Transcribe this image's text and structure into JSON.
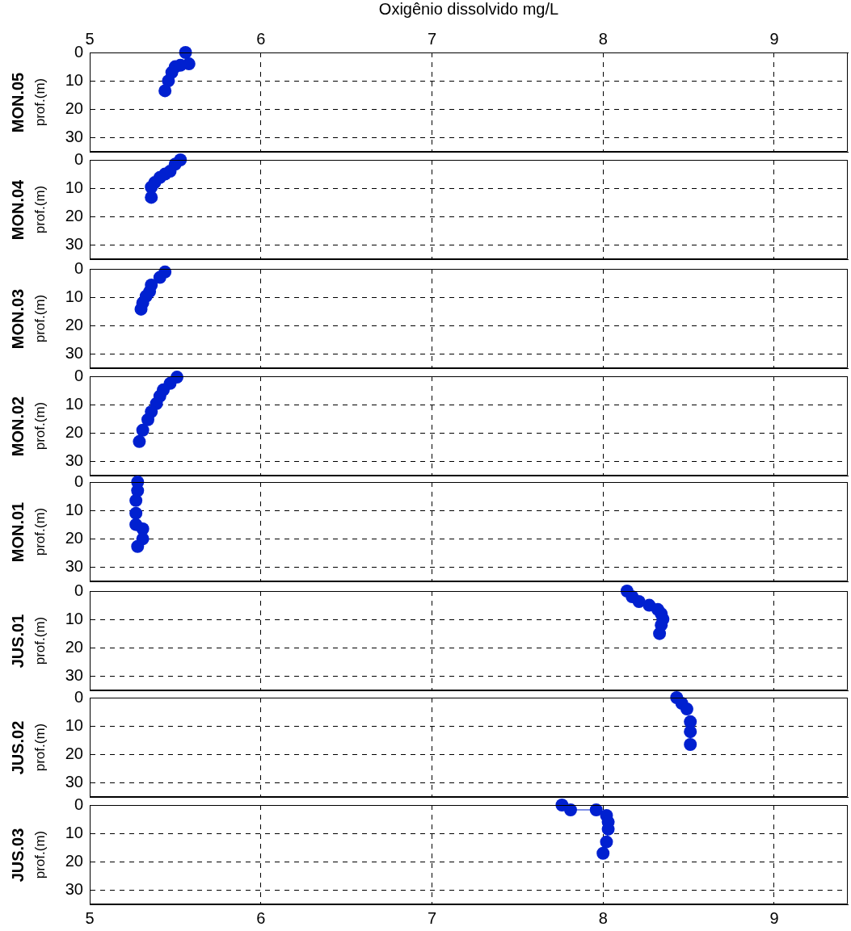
{
  "chart_data": [
    {
      "type": "scatter",
      "title": "MON.05",
      "ylabel": "prof.(m)",
      "x2label": "Oxigênio dissolvido mg/L",
      "x2lim": [
        5,
        9.43
      ],
      "x2ticks": [
        5,
        6,
        7,
        8,
        9
      ],
      "x": [
        5.56,
        5.58,
        5.53,
        5.5,
        5.48,
        5.46,
        5.44
      ],
      "values": [
        0,
        4,
        4.5,
        5,
        7,
        10,
        13.5
      ],
      "color": "#0020d0",
      "marker": "circle",
      "xlim": [
        5,
        9.43
      ],
      "xticks": [
        5,
        6,
        7,
        8,
        9
      ],
      "ylim": [
        35,
        0
      ],
      "yticks": [
        0,
        10,
        20,
        30
      ],
      "grid": true,
      "tick_labels": "y"
    },
    {
      "type": "scatter",
      "title": "MON.04",
      "ylabel": "prof.(m)",
      "x": [
        5.53,
        5.5,
        5.47,
        5.44,
        5.41,
        5.38,
        5.36,
        5.36
      ],
      "values": [
        0,
        1.5,
        4,
        5,
        6.2,
        8,
        9.6,
        13.2
      ],
      "color": "#0020d0",
      "marker": "circle",
      "xlim": [
        5,
        9.43
      ],
      "xticks": [
        5,
        6,
        7,
        8,
        9
      ],
      "ylim": [
        35,
        0
      ],
      "yticks": [
        0,
        10,
        20,
        30
      ],
      "grid": true,
      "tick_labels": "y"
    },
    {
      "type": "scatter",
      "title": "MON.03",
      "ylabel": "prof.(m)",
      "x": [
        5.44,
        5.41,
        5.36,
        5.35,
        5.33,
        5.31,
        5.3
      ],
      "values": [
        1.1,
        3,
        5.7,
        8,
        9.6,
        12,
        14.2
      ],
      "color": "#0020d0",
      "marker": "circle",
      "xlim": [
        5,
        9.43
      ],
      "xticks": [
        5,
        6,
        7,
        8,
        9
      ],
      "ylim": [
        35,
        0
      ],
      "yticks": [
        0,
        10,
        20,
        30
      ],
      "grid": true,
      "tick_labels": "y"
    },
    {
      "type": "scatter",
      "title": "MON.02",
      "ylabel": "prof.(m)",
      "x": [
        5.51,
        5.47,
        5.43,
        5.41,
        5.39,
        5.36,
        5.34,
        5.31,
        5.29
      ],
      "values": [
        0.3,
        2.5,
        4.8,
        7,
        9.6,
        12.5,
        15.3,
        19,
        23
      ],
      "color": "#0020d0",
      "marker": "circle",
      "xlim": [
        5,
        9.43
      ],
      "xticks": [
        5,
        6,
        7,
        8,
        9
      ],
      "ylim": [
        35,
        0
      ],
      "yticks": [
        0,
        10,
        20,
        30
      ],
      "grid": true,
      "tick_labels": "y"
    },
    {
      "type": "scatter",
      "title": "MON.01",
      "ylabel": "prof.(m)",
      "x": [
        5.28,
        5.28,
        5.27,
        5.27,
        5.27,
        5.31,
        5.31,
        5.28
      ],
      "values": [
        0,
        3,
        6.5,
        11,
        15,
        16.5,
        20,
        22.7
      ],
      "color": "#0020d0",
      "marker": "circle",
      "xlim": [
        5,
        9.43
      ],
      "xticks": [
        5,
        6,
        7,
        8,
        9
      ],
      "ylim": [
        35,
        0
      ],
      "yticks": [
        0,
        10,
        20,
        30
      ],
      "grid": true,
      "tick_labels": "y"
    },
    {
      "type": "scatter",
      "title": "JUS.01",
      "ylabel": "prof.(m)",
      "x": [
        8.14,
        8.17,
        8.21,
        8.27,
        8.32,
        8.34,
        8.35,
        8.34,
        8.33
      ],
      "values": [
        0,
        2,
        3.7,
        5,
        6.5,
        8,
        9.9,
        12,
        15
      ],
      "color": "#0020d0",
      "marker": "circle",
      "xlim": [
        5,
        9.43
      ],
      "xticks": [
        5,
        6,
        7,
        8,
        9
      ],
      "ylim": [
        35,
        0
      ],
      "yticks": [
        0,
        10,
        20,
        30
      ],
      "grid": true,
      "tick_labels": "y"
    },
    {
      "type": "scatter",
      "title": "JUS.02",
      "ylabel": "prof.(m)",
      "x": [
        8.43,
        8.46,
        8.49,
        8.51,
        8.51,
        8.51
      ],
      "values": [
        0,
        2,
        4,
        8.5,
        12,
        16.5
      ],
      "color": "#0020d0",
      "marker": "circle",
      "xlim": [
        5,
        9.43
      ],
      "xticks": [
        5,
        6,
        7,
        8,
        9
      ],
      "ylim": [
        35,
        0
      ],
      "yticks": [
        0,
        10,
        20,
        30
      ],
      "grid": true,
      "tick_labels": "y"
    },
    {
      "type": "line",
      "title": "JUS.03",
      "ylabel": "prof.(m)",
      "x": [
        7.76,
        7.81,
        7.96,
        8.02,
        8.03,
        8.03,
        8.02,
        8.0
      ],
      "values": [
        0,
        1.7,
        1.7,
        3.7,
        6,
        8.5,
        13,
        17
      ],
      "color": "#0020d0",
      "marker": "circle",
      "xlim": [
        5,
        9.43
      ],
      "xticks": [
        5,
        6,
        7,
        8,
        9
      ],
      "ylim": [
        35,
        0
      ],
      "yticks": [
        0,
        10,
        20,
        30
      ],
      "grid": true
    }
  ]
}
